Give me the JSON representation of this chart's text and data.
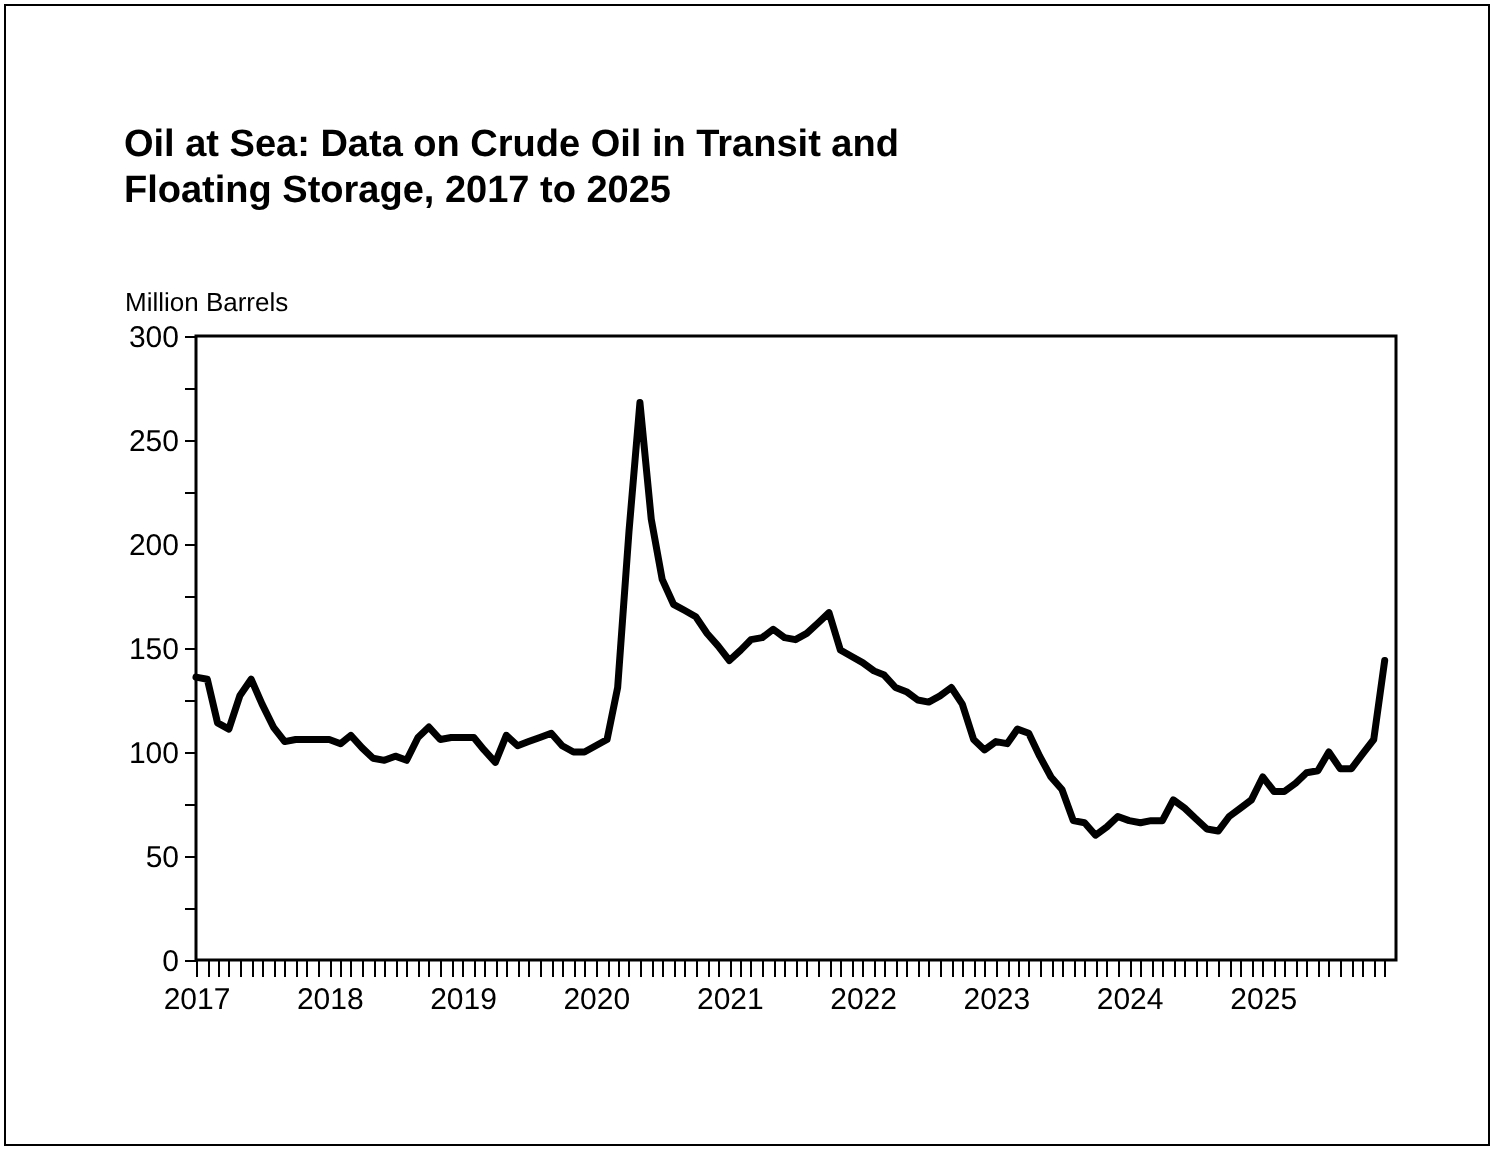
{
  "chart_data": {
    "type": "line",
    "title": "Oil at Sea: Data on Crude Oil in Transit and Floating Storage, 2017 to 2025",
    "ylabel": "Million Barrels",
    "x": [
      "2017-01",
      "2017-02",
      "2017-03",
      "2017-04",
      "2017-05",
      "2017-06",
      "2017-07",
      "2017-08",
      "2017-09",
      "2017-10",
      "2017-11",
      "2017-12",
      "2018-01",
      "2018-02",
      "2018-03",
      "2018-04",
      "2018-05",
      "2018-06",
      "2018-07",
      "2018-08",
      "2018-09",
      "2018-10",
      "2018-11",
      "2018-12",
      "2019-01",
      "2019-02",
      "2019-03",
      "2019-04",
      "2019-05",
      "2019-06",
      "2019-07",
      "2019-08",
      "2019-09",
      "2019-10",
      "2019-11",
      "2019-12",
      "2020-01",
      "2020-02",
      "2020-03",
      "2020-04",
      "2020-05",
      "2020-06",
      "2020-07",
      "2020-08",
      "2020-09",
      "2020-10",
      "2020-11",
      "2020-12",
      "2021-01",
      "2021-02",
      "2021-03",
      "2021-04",
      "2021-05",
      "2021-06",
      "2021-07",
      "2021-08",
      "2021-09",
      "2021-10",
      "2021-11",
      "2021-12",
      "2022-01",
      "2022-02",
      "2022-03",
      "2022-04",
      "2022-05",
      "2022-06",
      "2022-07",
      "2022-08",
      "2022-09",
      "2022-10",
      "2022-11",
      "2022-12",
      "2023-01",
      "2023-02",
      "2023-03",
      "2023-04",
      "2023-05",
      "2023-06",
      "2023-07",
      "2023-08",
      "2023-09",
      "2023-10",
      "2023-11",
      "2023-12",
      "2024-01",
      "2024-02",
      "2024-03",
      "2024-04",
      "2024-05",
      "2024-06",
      "2024-07",
      "2024-08",
      "2024-09",
      "2024-10",
      "2024-11",
      "2024-12",
      "2025-01",
      "2025-02",
      "2025-03",
      "2025-04",
      "2025-05",
      "2025-06",
      "2025-07",
      "2025-08",
      "2025-09",
      "2025-10",
      "2025-11",
      "2025-12"
    ],
    "series": [
      {
        "color": "#000000",
        "values": [
          136,
          135,
          114,
          111,
          127,
          135,
          123,
          112,
          105,
          106,
          106,
          106,
          106,
          104,
          108,
          102,
          97,
          96,
          98,
          96,
          107,
          112,
          106,
          107,
          107,
          107,
          101,
          95,
          108,
          103,
          105,
          107,
          109,
          103,
          100,
          100,
          103,
          106,
          131,
          206,
          268,
          212,
          183,
          171,
          168,
          165,
          157,
          151,
          144,
          149,
          154,
          155,
          159,
          155,
          154,
          157,
          162,
          167,
          149,
          146,
          143,
          139,
          137,
          131,
          129,
          125,
          124,
          127,
          131,
          123,
          106,
          101,
          105,
          104,
          111,
          109,
          98,
          88,
          82,
          67,
          66,
          60,
          64,
          69,
          67,
          66,
          67,
          67,
          77,
          73,
          68,
          63,
          62,
          69,
          73,
          77,
          88,
          81,
          81,
          85,
          90,
          91,
          100,
          92,
          92,
          99,
          106,
          144
        ]
      }
    ],
    "xlim": [
      "2017-01",
      "2026-01"
    ],
    "xticks": [
      "2017",
      {
        "value": "2017-02",
        "label": null
      },
      {
        "value": "2017-03",
        "label": null
      },
      {
        "value": "2017-04",
        "label": null
      },
      {
        "value": "2017-05",
        "label": null
      },
      {
        "value": "2017-06",
        "label": null
      },
      {
        "value": "2017-07",
        "label": null
      },
      {
        "value": "2017-08",
        "label": null
      },
      {
        "value": "2017-09",
        "label": null
      },
      {
        "value": "2017-10",
        "label": null
      },
      {
        "value": "2017-11",
        "label": null
      },
      {
        "value": "2017-12",
        "label": null
      },
      "2018",
      {
        "value": "2018-02",
        "label": null
      },
      {
        "value": "2018-03",
        "label": null
      },
      {
        "value": "2018-04",
        "label": null
      },
      {
        "value": "2018-05",
        "label": null
      },
      {
        "value": "2018-06",
        "label": null
      },
      {
        "value": "2018-07",
        "label": null
      },
      {
        "value": "2018-08",
        "label": null
      },
      {
        "value": "2018-09",
        "label": null
      },
      {
        "value": "2018-10",
        "label": null
      },
      {
        "value": "2018-11",
        "label": null
      },
      {
        "value": "2018-12",
        "label": null
      },
      "2019",
      {
        "value": "2019-02",
        "label": null
      },
      {
        "value": "2019-03",
        "label": null
      },
      {
        "value": "2019-04",
        "label": null
      },
      {
        "value": "2019-05",
        "label": null
      },
      {
        "value": "2019-06",
        "label": null
      },
      {
        "value": "2019-07",
        "label": null
      },
      {
        "value": "2019-08",
        "label": null
      },
      {
        "value": "2019-09",
        "label": null
      },
      {
        "value": "2019-10",
        "label": null
      },
      {
        "value": "2019-11",
        "label": null
      },
      {
        "value": "2019-12",
        "label": null
      },
      "2020",
      {
        "value": "2020-02",
        "label": null
      },
      {
        "value": "2020-03",
        "label": null
      },
      {
        "value": "2020-04",
        "label": null
      },
      {
        "value": "2020-05",
        "label": null
      },
      {
        "value": "2020-06",
        "label": null
      },
      {
        "value": "2020-07",
        "label": null
      },
      {
        "value": "2020-08",
        "label": null
      },
      {
        "value": "2020-09",
        "label": null
      },
      {
        "value": "2020-10",
        "label": null
      },
      {
        "value": "2020-11",
        "label": null
      },
      {
        "value": "2020-12",
        "label": null
      },
      "2021",
      {
        "value": "2021-02",
        "label": null
      },
      {
        "value": "2021-03",
        "label": null
      },
      {
        "value": "2021-04",
        "label": null
      },
      {
        "value": "2021-05",
        "label": null
      },
      {
        "value": "2021-06",
        "label": null
      },
      {
        "value": "2021-07",
        "label": null
      },
      {
        "value": "2021-08",
        "label": null
      },
      {
        "value": "2021-09",
        "label": null
      },
      {
        "value": "2021-10",
        "label": null
      },
      {
        "value": "2021-11",
        "label": null
      },
      {
        "value": "2021-12",
        "label": null
      },
      "2022",
      {
        "value": "2022-02",
        "label": null
      },
      {
        "value": "2022-03",
        "label": null
      },
      {
        "value": "2022-04",
        "label": null
      },
      {
        "value": "2022-05",
        "label": null
      },
      {
        "value": "2022-06",
        "label": null
      },
      {
        "value": "2022-07",
        "label": null
      },
      {
        "value": "2022-08",
        "label": null
      },
      {
        "value": "2022-09",
        "label": null
      },
      {
        "value": "2022-10",
        "label": null
      },
      {
        "value": "2022-11",
        "label": null
      },
      {
        "value": "2022-12",
        "label": null
      },
      "2023",
      {
        "value": "2023-02",
        "label": null
      },
      {
        "value": "2023-03",
        "label": null
      },
      {
        "value": "2023-04",
        "label": null
      },
      {
        "value": "2023-05",
        "label": null
      },
      {
        "value": "2023-06",
        "label": null
      },
      {
        "value": "2023-07",
        "label": null
      },
      {
        "value": "2023-08",
        "label": null
      },
      {
        "value": "2023-09",
        "label": null
      },
      {
        "value": "2023-10",
        "label": null
      },
      {
        "value": "2023-11",
        "label": null
      },
      {
        "value": "2023-12",
        "label": null
      },
      "2024",
      {
        "value": "2024-02",
        "label": null
      },
      {
        "value": "2024-03",
        "label": null
      },
      {
        "value": "2024-04",
        "label": null
      },
      {
        "value": "2024-05",
        "label": null
      },
      {
        "value": "2024-06",
        "label": null
      },
      {
        "value": "2024-07",
        "label": null
      },
      {
        "value": "2024-08",
        "label": null
      },
      {
        "value": "2024-09",
        "label": null
      },
      {
        "value": "2024-10",
        "label": null
      },
      {
        "value": "2024-11",
        "label": null
      },
      {
        "value": "2024-12",
        "label": null
      },
      "2025",
      {
        "value": "2025-02",
        "label": null
      },
      {
        "value": "2025-03",
        "label": null
      },
      {
        "value": "2025-04",
        "label": null
      },
      {
        "value": "2025-05",
        "label": null
      },
      {
        "value": "2025-06",
        "label": null
      },
      {
        "value": "2025-07",
        "label": null
      },
      {
        "value": "2025-08",
        "label": null
      },
      {
        "value": "2025-09",
        "label": null
      },
      {
        "value": "2025-10",
        "label": null
      },
      {
        "value": "2025-11",
        "label": null
      },
      {
        "value": "2025-12",
        "label": null
      }
    ],
    "ylim": [
      0,
      300
    ],
    "yticks": [
      0,
      {
        "value": 25,
        "label": null
      },
      50,
      {
        "value": 75,
        "label": null
      },
      100,
      {
        "value": 125,
        "label": null
      },
      150,
      {
        "value": 175,
        "label": null
      },
      200,
      {
        "value": 225,
        "label": null
      },
      250,
      {
        "value": 275,
        "label": null
      },
      300
    ],
    "grid": false
  }
}
